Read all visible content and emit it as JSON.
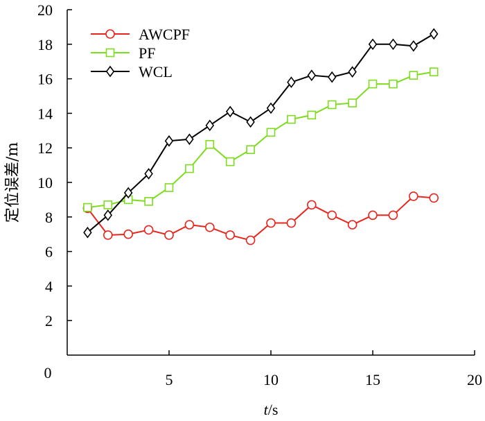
{
  "chart_data": {
    "type": "line",
    "title": "",
    "xlabel_italic": "t",
    "xlabel_unit": "/s",
    "ylabel": "定位误差/m",
    "xlim": [
      0,
      20
    ],
    "ylim": [
      0,
      20
    ],
    "x_ticks": [
      0,
      5,
      10,
      15,
      20
    ],
    "y_ticks": [
      2,
      4,
      6,
      8,
      10,
      12,
      14,
      16,
      18,
      20
    ],
    "origin_label": "0",
    "x": [
      1,
      2,
      3,
      4,
      5,
      6,
      7,
      8,
      9,
      10,
      11,
      12,
      13,
      14,
      15,
      16,
      17,
      18
    ],
    "series": [
      {
        "name": "AWCPF",
        "color": "#e8241c",
        "marker": "circle",
        "values": [
          8.5,
          6.95,
          7.0,
          7.25,
          6.95,
          7.55,
          7.4,
          6.95,
          6.65,
          7.65,
          7.65,
          8.7,
          8.1,
          7.55,
          8.1,
          8.1,
          9.2,
          9.1
        ]
      },
      {
        "name": "PF",
        "color": "#7cdc1e",
        "marker": "square",
        "values": [
          8.55,
          8.7,
          9.0,
          8.9,
          9.7,
          10.8,
          12.2,
          11.2,
          11.9,
          12.9,
          13.65,
          13.9,
          14.5,
          14.6,
          15.7,
          15.7,
          16.2,
          16.4
        ]
      },
      {
        "name": "WCL",
        "color": "#000000",
        "marker": "diamond",
        "values": [
          7.1,
          8.1,
          9.4,
          10.5,
          12.4,
          12.5,
          13.3,
          14.1,
          13.5,
          14.3,
          15.8,
          16.2,
          16.1,
          16.4,
          18.0,
          18.0,
          17.9,
          18.6
        ]
      }
    ],
    "legend_position": "top-left"
  }
}
